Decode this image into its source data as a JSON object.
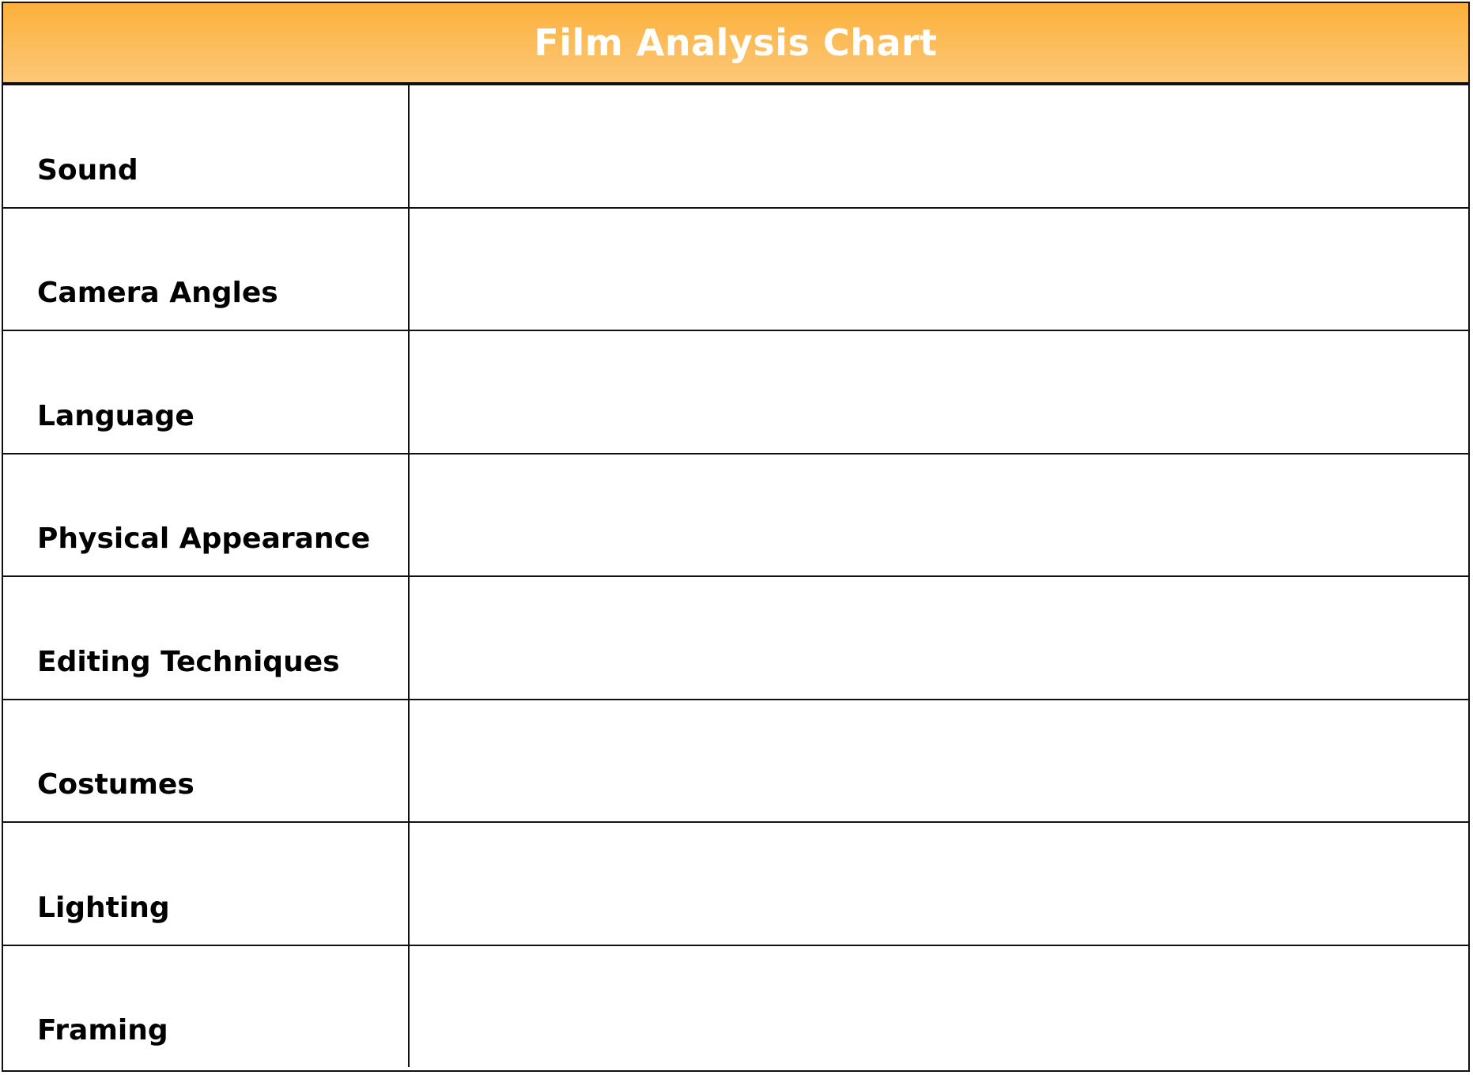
{
  "title": "Film Analysis Chart",
  "colors": {
    "header_top": "#fbb03b",
    "header_bottom": "#fdc878",
    "header_text": "#ffffff",
    "border": "#111111"
  },
  "rows": [
    {
      "label": "Sound",
      "value": ""
    },
    {
      "label": "Camera Angles",
      "value": ""
    },
    {
      "label": "Language",
      "value": ""
    },
    {
      "label": "Physical Appearance",
      "value": ""
    },
    {
      "label": "Editing Techniques",
      "value": ""
    },
    {
      "label": "Costumes",
      "value": ""
    },
    {
      "label": "Lighting",
      "value": ""
    },
    {
      "label": "Framing",
      "value": ""
    }
  ]
}
